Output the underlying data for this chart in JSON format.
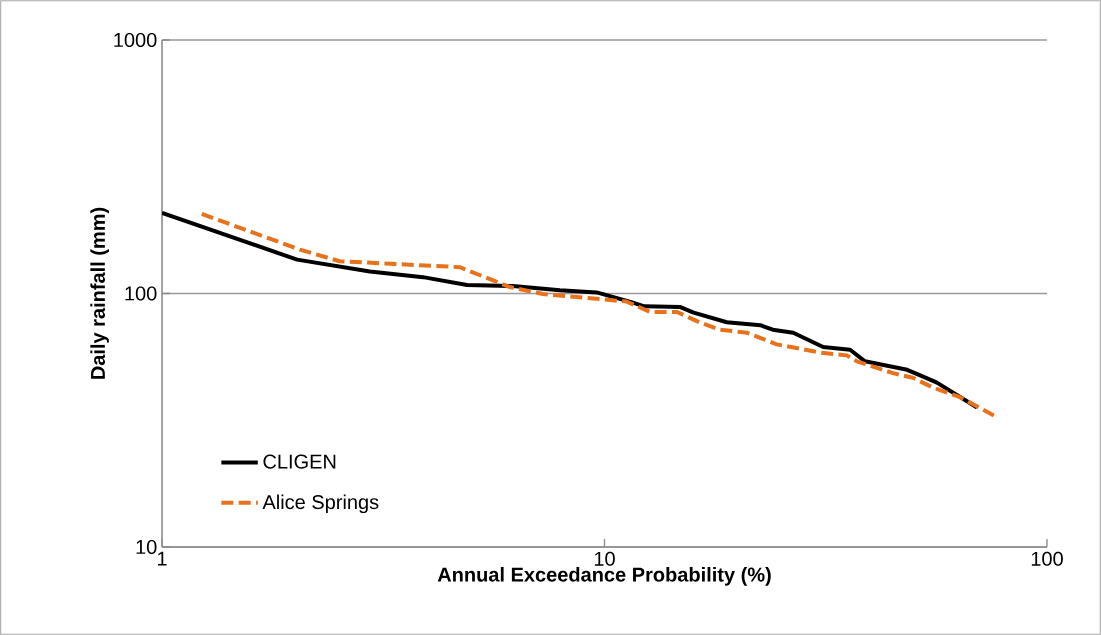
{
  "chart_data": {
    "type": "line",
    "xlabel": "Annual Exceedance Probability (%)",
    "ylabel": "Daily rainfall (mm)",
    "log": "xy",
    "grid": "y",
    "legend": "bottom left",
    "xlim": [
      1,
      100
    ],
    "xticks": [
      1,
      10,
      100
    ],
    "ylim": [
      10,
      1000
    ],
    "yticks": [
      10,
      100,
      1000
    ],
    "series": [
      {
        "name": "CLIGEN",
        "color": "#000000",
        "line_style": "solid",
        "x": [
          1,
          2.02,
          2.95,
          3.89,
          4.89,
          6.21,
          7.93,
          9.6,
          11.5,
          12.3,
          14.8,
          15.9,
          18.9,
          22.5,
          24.0,
          26.7,
          31.2,
          35.9,
          38.8,
          48.3,
          52.5,
          56.4,
          69.5
        ],
        "values": [
          208,
          136,
          122,
          116,
          108,
          107,
          103,
          101,
          92.5,
          89,
          88.5,
          84,
          77,
          75,
          72,
          70,
          61.5,
          60,
          54,
          50,
          47,
          44.5,
          35.5
        ]
      },
      {
        "name": "Alice Springs",
        "color": "#e8711a",
        "line_style": "dashed",
        "x": [
          1.23,
          2.05,
          2.52,
          4.71,
          6.11,
          7.26,
          11.2,
          12.7,
          14.6,
          16.4,
          18.2,
          21.0,
          24.5,
          30.7,
          35.3,
          37.2,
          44.9,
          49.8,
          55.3,
          63.6,
          77.1
        ],
        "values": [
          206,
          149,
          134,
          127,
          106,
          99.5,
          93,
          84.5,
          84.5,
          77,
          72,
          70,
          63,
          58.5,
          57,
          54,
          48.5,
          46.5,
          42.5,
          39,
          32.5
        ]
      }
    ]
  }
}
